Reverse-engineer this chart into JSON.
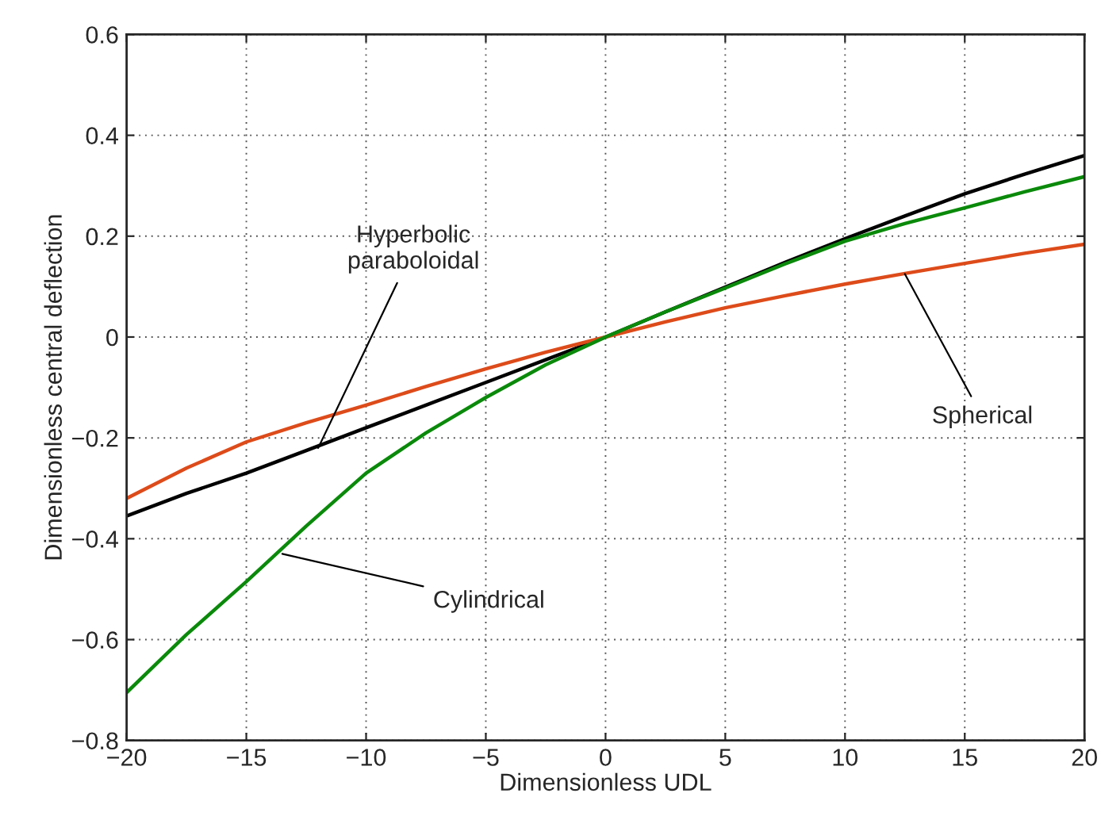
{
  "chart_data": {
    "type": "line",
    "xlabel": "Dimensionless UDL",
    "ylabel": "Dimensionless central deflection",
    "x": [
      -20,
      -17.5,
      -15,
      -12.5,
      -10,
      -7.5,
      -5,
      -2.5,
      0,
      2.5,
      5,
      7.5,
      10,
      12.5,
      15,
      17.5,
      20
    ],
    "series": [
      {
        "color": "#000000",
        "values": [
          -0.355,
          -0.31,
          -0.27,
          -0.225,
          -0.18,
          -0.135,
          -0.09,
          -0.045,
          0,
          0.05,
          0.099,
          0.148,
          0.195,
          0.24,
          0.284,
          0.323,
          0.36
        ]
      },
      {
        "color": "#dd4b1a",
        "values": [
          -0.32,
          -0.26,
          -0.208,
          -0.17,
          -0.135,
          -0.098,
          -0.063,
          -0.03,
          0,
          0.03,
          0.058,
          0.082,
          0.105,
          0.126,
          0.146,
          0.166,
          0.184
        ]
      },
      {
        "color": "#0a8a0a",
        "values": [
          -0.705,
          -0.59,
          -0.485,
          -0.375,
          -0.27,
          -0.19,
          -0.12,
          -0.055,
          0,
          0.05,
          0.097,
          0.145,
          0.19,
          0.225,
          0.256,
          0.288,
          0.318
        ]
      }
    ],
    "annotations": [
      {
        "text": "Hyperbolic\nparaboloidal",
        "x": -12,
        "y": -0.22
      },
      {
        "text": "Cylindrical",
        "x": -13.5,
        "y": -0.43
      },
      {
        "text": "Spherical",
        "x": 12.5,
        "y": 0.125
      }
    ],
    "xlim": [
      -20,
      20
    ],
    "ylim": [
      -0.8,
      0.6
    ],
    "xticks": [
      {
        "value": -20,
        "label": "−20"
      },
      {
        "value": -15,
        "label": "−15"
      },
      {
        "value": -10,
        "label": "−10"
      },
      {
        "value": -5,
        "label": "−5"
      },
      0,
      5,
      10,
      15,
      20
    ],
    "yticks": [
      {
        "value": -0.8,
        "label": "−0.8"
      },
      {
        "value": -0.6,
        "label": "−0.6"
      },
      {
        "value": -0.4,
        "label": "−0.4"
      },
      {
        "value": -0.2,
        "label": "−0.2"
      },
      0,
      0.2,
      0.4,
      0.6
    ],
    "grid": true,
    "legend": false,
    "marker": "none",
    "line_style": "solid"
  }
}
